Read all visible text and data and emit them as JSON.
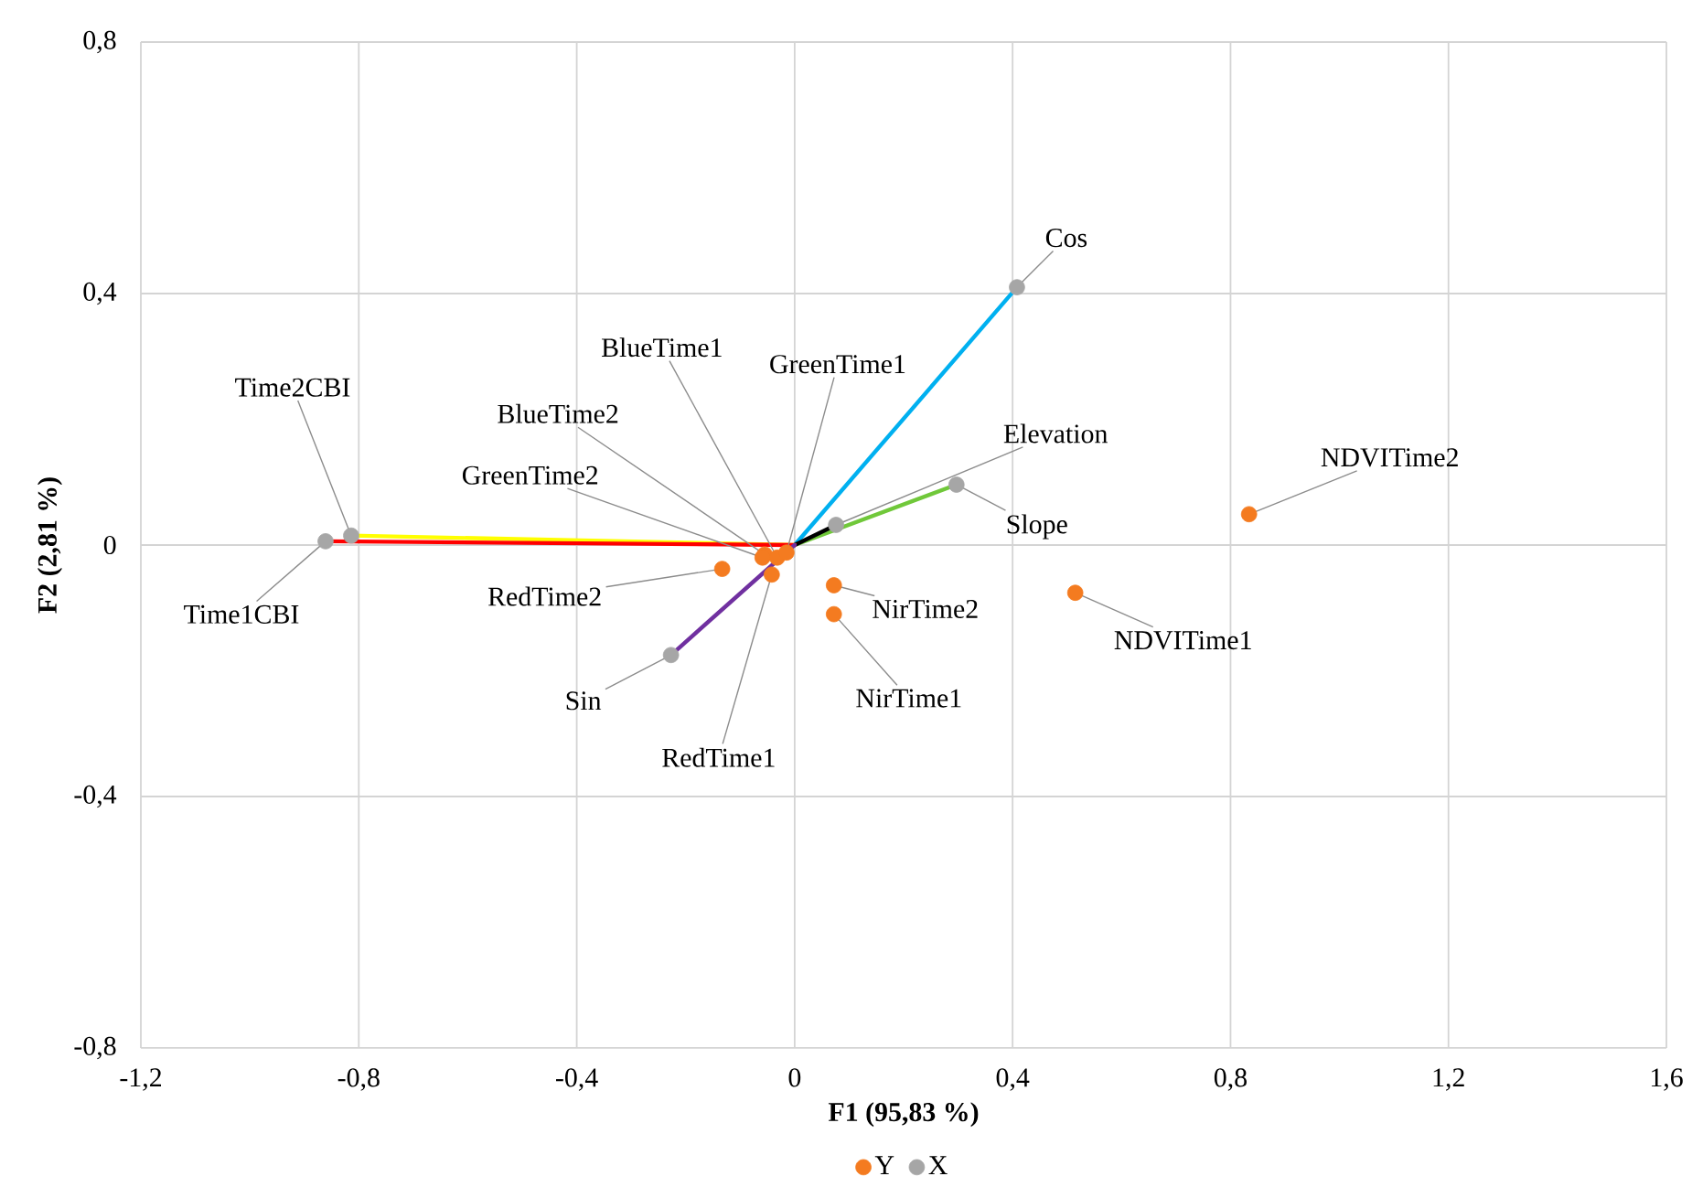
{
  "chart_data": {
    "type": "scatter",
    "xlabel": "F1 (95,83 %)",
    "ylabel": "F2 (2,81 %)",
    "xlim": [
      -1.2,
      1.6
    ],
    "ylim": [
      -0.8,
      0.8
    ],
    "xticks": [
      {
        "value": -1.2,
        "label": "-1,2"
      },
      {
        "value": -0.8,
        "label": "-0,8"
      },
      {
        "value": -0.4,
        "label": "-0,4"
      },
      0,
      {
        "value": 0.4,
        "label": "0,4"
      },
      {
        "value": 0.8,
        "label": "0,8"
      },
      {
        "value": 1.2,
        "label": "1,2"
      },
      {
        "value": 1.6,
        "label": "1,6"
      }
    ],
    "yticks": [
      {
        "value": -0.8,
        "label": "-0,8"
      },
      {
        "value": -0.4,
        "label": "-0,4"
      },
      0,
      {
        "value": 0.4,
        "label": "0,4"
      },
      {
        "value": 0.8,
        "label": "0,8"
      }
    ],
    "grid": true,
    "legend": "bottom",
    "series": [
      {
        "type": "line",
        "marker": "none",
        "color": "#00b0f0",
        "x": [
          0,
          0.408
        ],
        "values": [
          0,
          0.41
        ]
      },
      {
        "type": "line",
        "marker": "none",
        "color": "#70c83a",
        "x": [
          0,
          0.297
        ],
        "values": [
          0,
          0.096
        ]
      },
      {
        "type": "line",
        "marker": "none",
        "color": "#000000",
        "x": [
          0,
          0.076
        ],
        "values": [
          0,
          0.032
        ]
      },
      {
        "type": "line",
        "marker": "none",
        "color": "#ffff00",
        "x": [
          0,
          -0.814
        ],
        "values": [
          0,
          0.015
        ]
      },
      {
        "type": "line",
        "marker": "none",
        "color": "#ff0000",
        "x": [
          0,
          -0.861
        ],
        "values": [
          0,
          0.006
        ]
      },
      {
        "type": "line",
        "marker": "none",
        "color": "#7030a0",
        "x": [
          0,
          -0.227
        ],
        "values": [
          0,
          -0.175
        ]
      },
      {
        "name": "Y",
        "marker": "circle",
        "color": "#f47b20",
        "x": [
          0.834,
          0.515,
          0.072,
          0.072,
          -0.133,
          -0.042,
          -0.055,
          -0.059,
          -0.032,
          -0.015
        ],
        "values": [
          0.049,
          -0.076,
          -0.064,
          -0.11,
          -0.038,
          -0.047,
          -0.015,
          -0.02,
          -0.02,
          -0.012
        ]
      },
      {
        "name": "X",
        "marker": "circle",
        "color": "#a6a6a6",
        "x": [
          0.408,
          0.297,
          0.076,
          -0.814,
          -0.861,
          -0.227
        ],
        "values": [
          0.41,
          0.096,
          0.032,
          0.015,
          0.006,
          -0.175
        ]
      }
    ],
    "annotations": [
      {
        "text": "NDVITime2",
        "x": 0.834,
        "y": 0.049
      },
      {
        "text": "NDVITime1",
        "x": 0.515,
        "y": -0.076
      },
      {
        "text": "NirTime2",
        "x": 0.072,
        "y": -0.064
      },
      {
        "text": "NirTime1",
        "x": 0.072,
        "y": -0.11
      },
      {
        "text": "RedTime2",
        "x": -0.133,
        "y": -0.038
      },
      {
        "text": "RedTime1",
        "x": -0.042,
        "y": -0.047
      },
      {
        "text": "BlueTime2",
        "x": -0.055,
        "y": -0.015
      },
      {
        "text": "GreenTime2",
        "x": -0.059,
        "y": -0.02
      },
      {
        "text": "BlueTime1",
        "x": -0.032,
        "y": -0.02
      },
      {
        "text": "GreenTime1",
        "x": -0.015,
        "y": -0.012
      },
      {
        "text": "Cos",
        "x": 0.408,
        "y": 0.41
      },
      {
        "text": "Slope",
        "x": 0.297,
        "y": 0.096
      },
      {
        "text": "Elevation",
        "x": 0.076,
        "y": 0.032
      },
      {
        "text": "Time2CBI",
        "x": -0.814,
        "y": 0.015
      },
      {
        "text": "Time1CBI",
        "x": -0.861,
        "y": 0.006
      },
      {
        "text": "Sin",
        "x": -0.227,
        "y": -0.175
      }
    ]
  }
}
